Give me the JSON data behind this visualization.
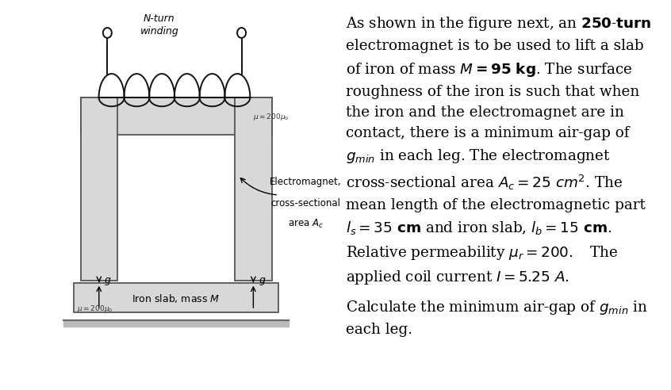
{
  "bg_color": "#ffffff",
  "diagram": {
    "core_color": "#d8d8d8",
    "core_outline": "#555555",
    "slab_color": "#d8d8d8",
    "slab_outline": "#555555",
    "coil_color": "#111111",
    "label_nturn": "N-turn\nwinding",
    "label_mu_core": "μ=200μ₀",
    "label_mu_slab": "μ=200μ₀",
    "label_emag_1": "Electromagnet,",
    "label_emag_2": "cross-sectional",
    "label_emag_3": "area A",
    "label_iron": "Iron slab, mass ",
    "label_g": "g"
  },
  "text": {
    "para1_lines": [
      "As shown in the figure next, an {bold}250-turn{/bold}",
      "electromagnet is to be used to lift a slab",
      "of iron of mass {bold}{italic}M{/italic}=95 kg{/bold}. The surface",
      "roughness of the iron is such that when",
      "the iron and the electromagnet are in",
      "contact, there is a minimum air-gap of",
      "{italic}g{/italic}{sub}min{/sub} in each leg. The electromagnet",
      "cross-sectional area {italic}A{/italic}{sub}c{/sub}=25 cm². The",
      "mean length of the electromagnetic part",
      "{italic}l{/italic}{sub}s{/sub}=35 {bold}cm{/bold} and iron slab, {italic}l{/italic}{sub}b{/sub}=15 {bold}cm{/bold}.",
      "Relative permeability {italic}μ{/italic}{sub}r{/sub}=200.   The",
      "applied coil current {italic}I{/italic}=5.25 A."
    ],
    "para2_lines": [
      "Calculate the minimum air-gap of {italic}g{/italic}{sub}min{/sub} in",
      "each leg."
    ],
    "fontsize": 13,
    "fontfamily": "serif"
  }
}
